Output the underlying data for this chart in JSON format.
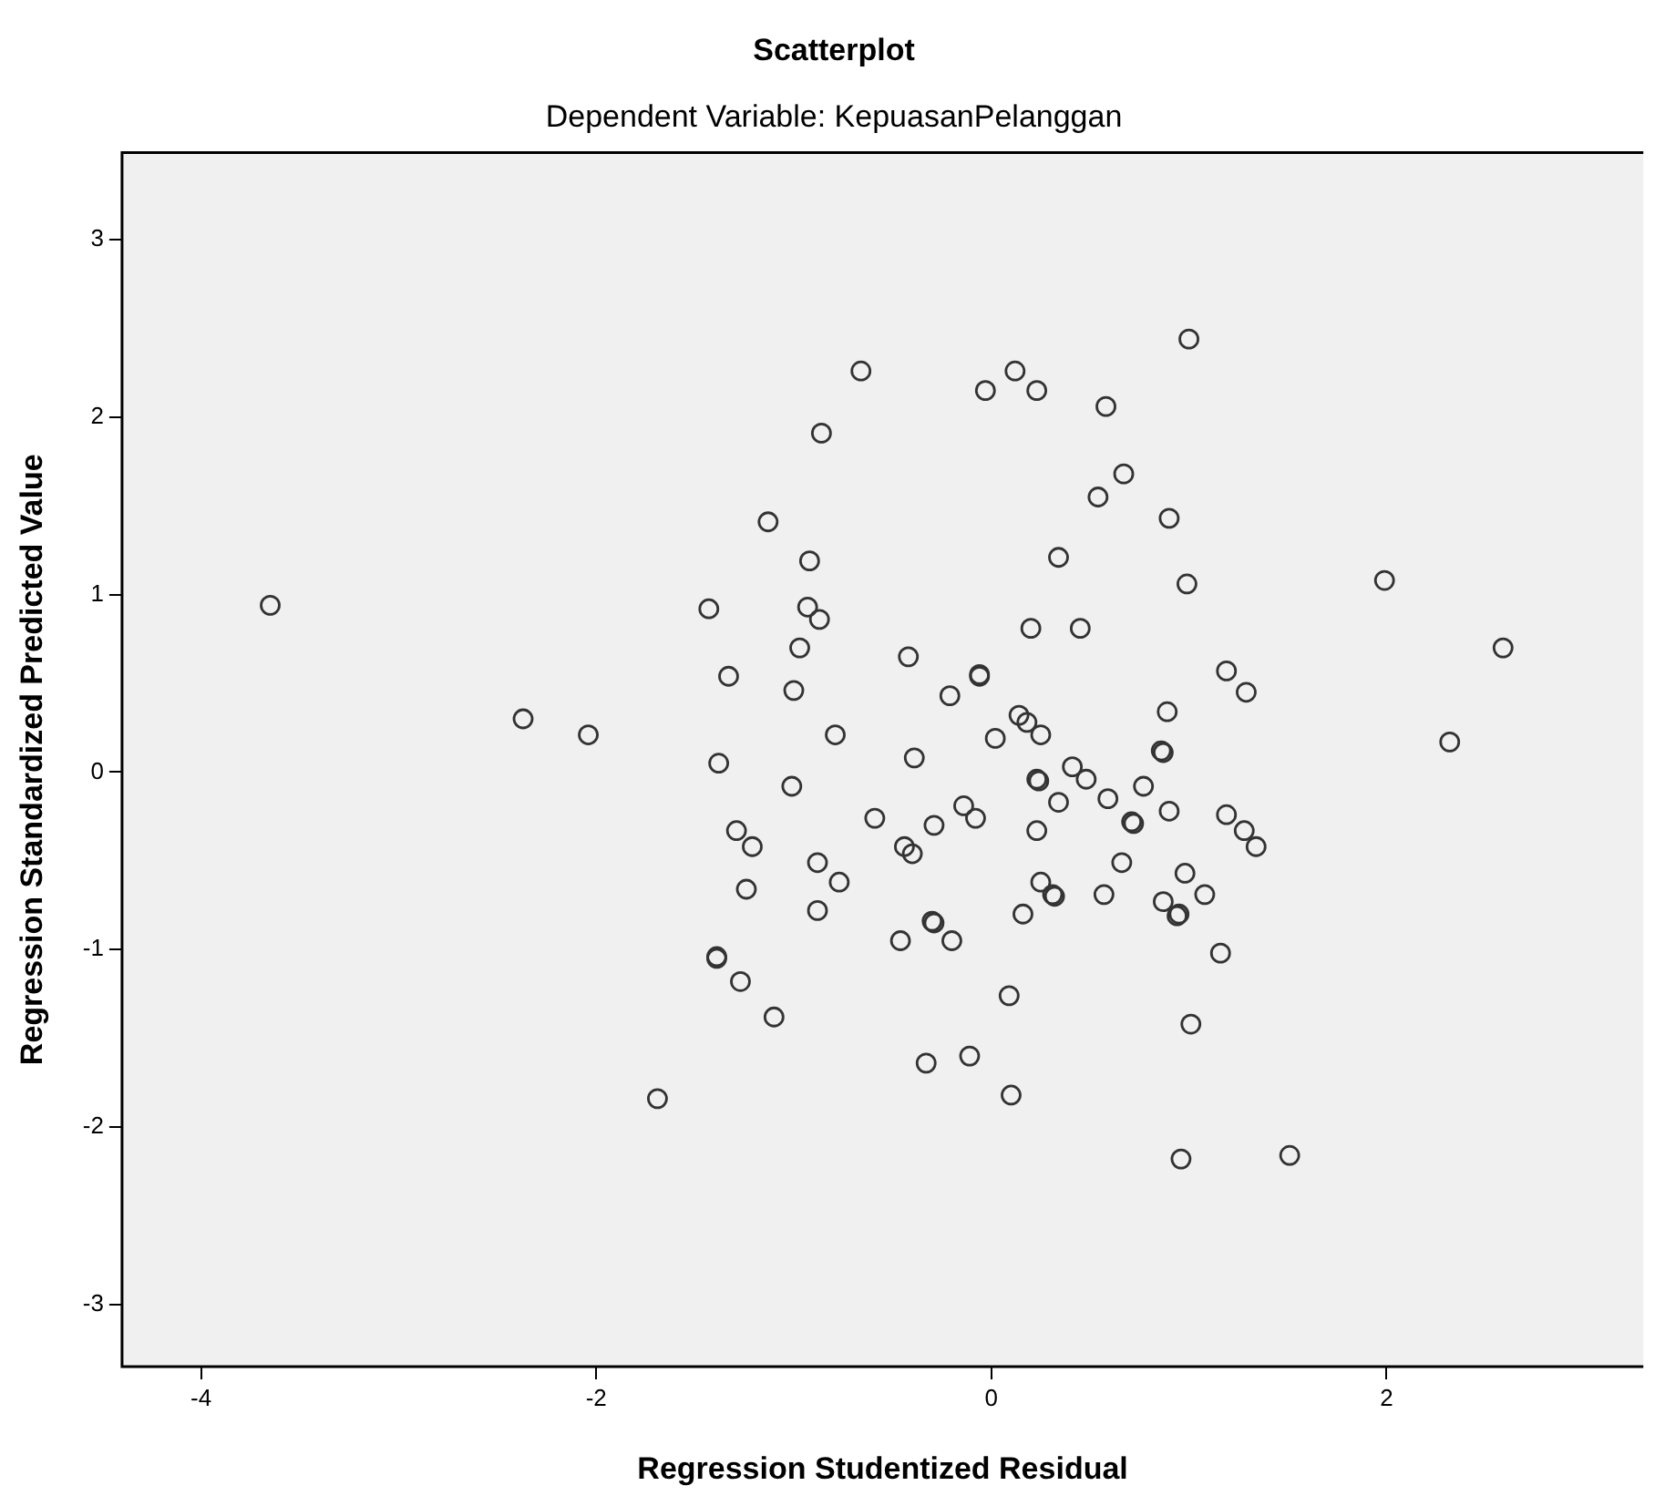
{
  "chart_data": {
    "type": "scatter",
    "title": "Scatterplot",
    "subtitle": "Dependent Variable: KepuasanPelanggan",
    "xlabel": "Regression Studentized Residual",
    "ylabel": "Regression Standardized Predicted Value",
    "xlim": [
      -4.4,
      3.3
    ],
    "ylim": [
      -3.35,
      3.49
    ],
    "xticks": [
      -4,
      -2,
      0,
      2
    ],
    "yticks": [
      -3,
      -2,
      -1,
      0,
      1,
      2,
      3
    ],
    "grid": false,
    "legend": false,
    "marker": "circle",
    "series": [
      {
        "color": "#333333",
        "x": [
          -3.65,
          -2.37,
          -2.04,
          -1.69,
          -0.66,
          -0.86,
          -1.13,
          -0.92,
          -1.43,
          -0.93,
          -0.87,
          -0.97,
          -1.33,
          -1.0,
          -0.79,
          -1.38,
          -1.01,
          -0.59,
          -1.29,
          -1.21,
          -0.88,
          -0.77,
          -1.24,
          -0.88,
          -1.39,
          -1.39,
          -1.27,
          -1.1,
          1.0,
          -0.03,
          0.12,
          0.23,
          0.58,
          0.67,
          0.54,
          0.9,
          0.34,
          0.99,
          1.99,
          0.2,
          0.45,
          2.59,
          -0.42,
          -0.06,
          -0.06,
          -0.21,
          1.19,
          1.29,
          0.89,
          0.14,
          0.18,
          0.02,
          0.25,
          2.32,
          -0.39,
          0.86,
          0.87,
          0.41,
          0.23,
          0.24,
          0.48,
          0.77,
          0.59,
          0.34,
          0.9,
          1.19,
          -0.14,
          -0.08,
          -0.29,
          0.23,
          0.71,
          0.72,
          1.28,
          1.34,
          -0.44,
          -0.4,
          0.66,
          0.25,
          0.31,
          0.32,
          0.57,
          0.98,
          1.08,
          0.87,
          0.94,
          0.95,
          0.16,
          -0.3,
          -0.29,
          -0.46,
          -0.2,
          1.16,
          0.09,
          1.01,
          -0.33,
          -0.11,
          0.1,
          0.96,
          1.51
        ],
        "values": [
          0.94,
          0.3,
          0.21,
          -1.84,
          2.26,
          1.91,
          1.41,
          1.19,
          0.92,
          0.93,
          0.86,
          0.7,
          0.54,
          0.46,
          0.21,
          0.05,
          -0.08,
          -0.26,
          -0.33,
          -0.42,
          -0.51,
          -0.62,
          -0.66,
          -0.78,
          -1.04,
          -1.05,
          -1.18,
          -1.38,
          2.44,
          2.15,
          2.26,
          2.15,
          2.06,
          1.68,
          1.55,
          1.43,
          1.21,
          1.06,
          1.08,
          0.81,
          0.81,
          0.7,
          0.65,
          0.54,
          0.55,
          0.43,
          0.57,
          0.45,
          0.34,
          0.32,
          0.28,
          0.19,
          0.21,
          0.17,
          0.08,
          0.12,
          0.11,
          0.03,
          -0.04,
          -0.05,
          -0.04,
          -0.08,
          -0.15,
          -0.17,
          -0.22,
          -0.24,
          -0.19,
          -0.26,
          -0.3,
          -0.33,
          -0.28,
          -0.29,
          -0.33,
          -0.42,
          -0.42,
          -0.46,
          -0.51,
          -0.62,
          -0.69,
          -0.7,
          -0.69,
          -0.57,
          -0.69,
          -0.73,
          -0.81,
          -0.8,
          -0.8,
          -0.84,
          -0.85,
          -0.95,
          -0.95,
          -1.02,
          -1.26,
          -1.42,
          -1.64,
          -1.6,
          -1.82,
          -2.18,
          -2.16
        ]
      }
    ]
  }
}
